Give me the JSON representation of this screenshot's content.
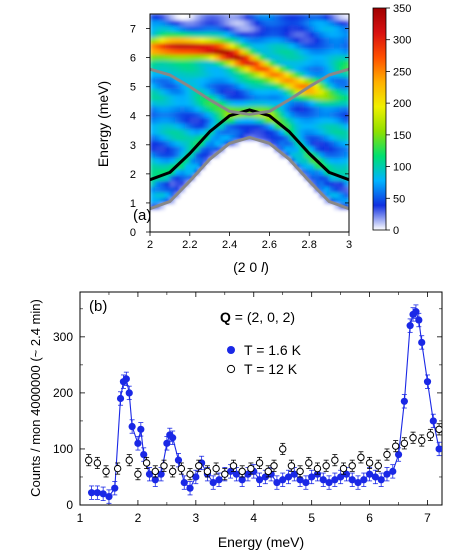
{
  "chart_data": [
    {
      "type": "heatmap",
      "panel_label": "(a)",
      "xlabel_parts": [
        "(2 0 ",
        "l",
        ")"
      ],
      "ylabel": "Energy (meV)",
      "xlim": [
        2.0,
        3.0
      ],
      "ylim": [
        0,
        7.5
      ],
      "x_ticks": [
        "2",
        "2.2",
        "2.4",
        "2.6",
        "2.8",
        "3"
      ],
      "y_ticks": [
        "0",
        "1",
        "2",
        "3",
        "4",
        "5",
        "6",
        "7"
      ],
      "colorbar_ticks": [
        "0",
        "50",
        "100",
        "150",
        "200",
        "250",
        "300",
        "350"
      ],
      "colorbar_range": [
        0,
        350
      ],
      "colorbar_colors": [
        "#ffffff",
        "#1030e0",
        "#00b4ff",
        "#00e070",
        "#90e000",
        "#f0f000",
        "#ffb000",
        "#ff5000",
        "#d81010",
        "#a00000"
      ],
      "curves": [
        {
          "x": [
            2.0,
            2.1,
            2.2,
            2.3,
            2.4,
            2.5,
            2.6,
            2.7,
            2.8,
            2.9,
            3.0
          ],
          "y": [
            1.8,
            2.05,
            2.7,
            3.45,
            4.0,
            4.2,
            4.0,
            3.45,
            2.7,
            2.05,
            1.8
          ],
          "color": "#000000"
        },
        {
          "x": [
            2.0,
            2.1,
            2.2,
            2.3,
            2.4,
            2.5,
            2.6,
            2.7,
            2.8,
            2.9,
            3.0
          ],
          "y": [
            0.8,
            1.05,
            1.75,
            2.5,
            3.05,
            3.25,
            3.05,
            2.5,
            1.75,
            1.05,
            0.8
          ],
          "color": "#888888"
        },
        {
          "x": [
            2.0,
            2.1,
            2.2,
            2.3,
            2.4,
            2.5,
            2.6,
            2.7,
            2.8,
            2.9,
            3.0
          ],
          "y": [
            5.6,
            5.4,
            5.0,
            4.55,
            4.15,
            4.05,
            4.15,
            4.55,
            5.0,
            5.4,
            5.6
          ],
          "color": "#888888"
        }
      ]
    },
    {
      "type": "scatter",
      "panel_label": "(b)",
      "xlabel": "Energy (meV)",
      "ylabel": "Counts / mon 4000000 (~ 2.4 min)",
      "xlim": [
        1.0,
        7.25
      ],
      "ylim": [
        0,
        380
      ],
      "x_ticks": [
        "1",
        "2",
        "3",
        "4",
        "5",
        "6",
        "7"
      ],
      "y_ticks": [
        "0",
        "100",
        "200",
        "300"
      ],
      "annotation_bold": "Q",
      "annotation_rest": " = (2, 0, 2)",
      "series": [
        {
          "name": "T = 1.6 K",
          "marker": "filled",
          "color": "#1a28e6",
          "x": [
            1.2,
            1.3,
            1.4,
            1.5,
            1.6,
            1.7,
            1.75,
            1.8,
            1.85,
            1.9,
            2.0,
            2.05,
            2.1,
            2.2,
            2.3,
            2.4,
            2.5,
            2.55,
            2.6,
            2.7,
            2.8,
            2.9,
            3.0,
            3.1,
            3.2,
            3.3,
            3.4,
            3.5,
            3.6,
            3.7,
            3.8,
            3.9,
            4.0,
            4.1,
            4.2,
            4.3,
            4.4,
            4.5,
            4.6,
            4.7,
            4.8,
            4.9,
            5.0,
            5.1,
            5.2,
            5.3,
            5.4,
            5.5,
            5.6,
            5.7,
            5.8,
            5.9,
            6.0,
            6.1,
            6.2,
            6.3,
            6.4,
            6.5,
            6.6,
            6.7,
            6.75,
            6.8,
            6.85,
            6.9,
            7.0,
            7.1,
            7.2
          ],
          "y": [
            22,
            22,
            20,
            15,
            30,
            190,
            220,
            225,
            200,
            140,
            110,
            135,
            90,
            55,
            45,
            55,
            110,
            125,
            120,
            80,
            40,
            30,
            50,
            75,
            55,
            40,
            45,
            55,
            60,
            55,
            45,
            55,
            60,
            45,
            50,
            55,
            40,
            45,
            50,
            55,
            45,
            40,
            50,
            55,
            45,
            40,
            45,
            50,
            55,
            45,
            40,
            45,
            55,
            50,
            45,
            55,
            60,
            90,
            185,
            320,
            340,
            345,
            330,
            290,
            220,
            150,
            100
          ],
          "error": 12
        },
        {
          "name": "T = 12 K",
          "marker": "open",
          "color": "#000000",
          "x": [
            1.15,
            1.3,
            1.45,
            1.65,
            1.85,
            2.0,
            2.15,
            2.3,
            2.45,
            2.6,
            2.75,
            2.9,
            3.05,
            3.2,
            3.35,
            3.5,
            3.65,
            3.8,
            3.95,
            4.1,
            4.25,
            4.35,
            4.5,
            4.65,
            4.8,
            4.95,
            5.1,
            5.25,
            5.4,
            5.55,
            5.7,
            5.85,
            6.0,
            6.15,
            6.3,
            6.45,
            6.6,
            6.75,
            6.9,
            7.05,
            7.2
          ],
          "y": [
            80,
            75,
            60,
            65,
            80,
            55,
            75,
            60,
            70,
            60,
            65,
            55,
            70,
            60,
            65,
            55,
            70,
            60,
            65,
            75,
            60,
            70,
            100,
            70,
            60,
            75,
            65,
            70,
            80,
            65,
            70,
            85,
            75,
            70,
            90,
            105,
            110,
            120,
            115,
            125,
            135
          ],
          "error": 10
        }
      ]
    }
  ]
}
